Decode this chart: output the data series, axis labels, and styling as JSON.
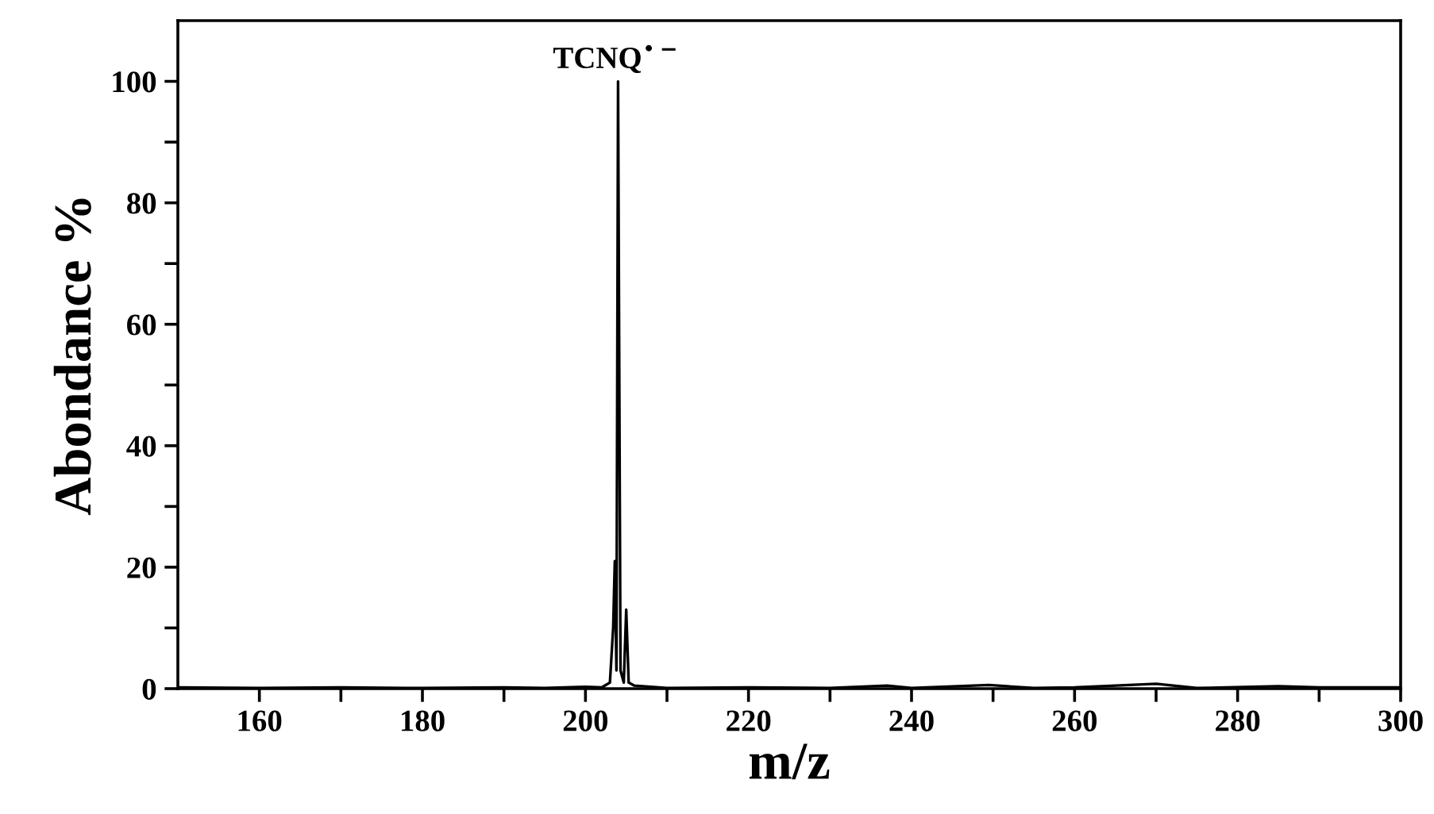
{
  "chart_data": {
    "type": "line",
    "xlabel": "m/z",
    "ylabel": "Abondance %",
    "x": [
      150,
      160,
      170,
      180,
      190,
      195,
      200,
      202,
      203,
      203.4,
      203.6,
      203.8,
      204.0,
      204.3,
      204.7,
      205.0,
      205.3,
      206,
      210,
      220,
      230,
      237,
      240,
      249.5,
      255,
      260,
      270,
      275,
      285,
      290,
      300
    ],
    "series": [
      {
        "color": "#000000",
        "values": [
          0.2,
          0.1,
          0.2,
          0.1,
          0.2,
          0.1,
          0.3,
          0.2,
          1,
          10,
          21,
          3,
          100,
          3,
          1,
          13,
          1,
          0.5,
          0.1,
          0.2,
          0.1,
          0.5,
          0.1,
          0.6,
          0.1,
          0.2,
          0.8,
          0.1,
          0.4,
          0.2,
          0.2
        ]
      }
    ],
    "annotations": [
      {
        "text": "TCNQ$^{•−}$",
        "x": 204,
        "y": 100
      }
    ],
    "xlim": [
      150,
      300
    ],
    "ylim": [
      0,
      110
    ],
    "xticks": [
      160,
      {
        "value": 170,
        "label": null
      },
      180,
      {
        "value": 190,
        "label": null
      },
      200,
      {
        "value": 210,
        "label": null
      },
      220,
      {
        "value": 230,
        "label": null
      },
      240,
      {
        "value": 250,
        "label": null
      },
      260,
      {
        "value": 270,
        "label": null
      },
      280,
      {
        "value": 290,
        "label": null
      },
      300
    ],
    "yticks": [
      0,
      {
        "value": 10,
        "label": null
      },
      20,
      {
        "value": 30,
        "label": null
      },
      40,
      {
        "value": 50,
        "label": null
      },
      60,
      {
        "value": 70,
        "label": null
      },
      80,
      {
        "value": 90,
        "label": null
      },
      100
    ],
    "grid": false,
    "marker": "none",
    "line_style": "solid"
  }
}
